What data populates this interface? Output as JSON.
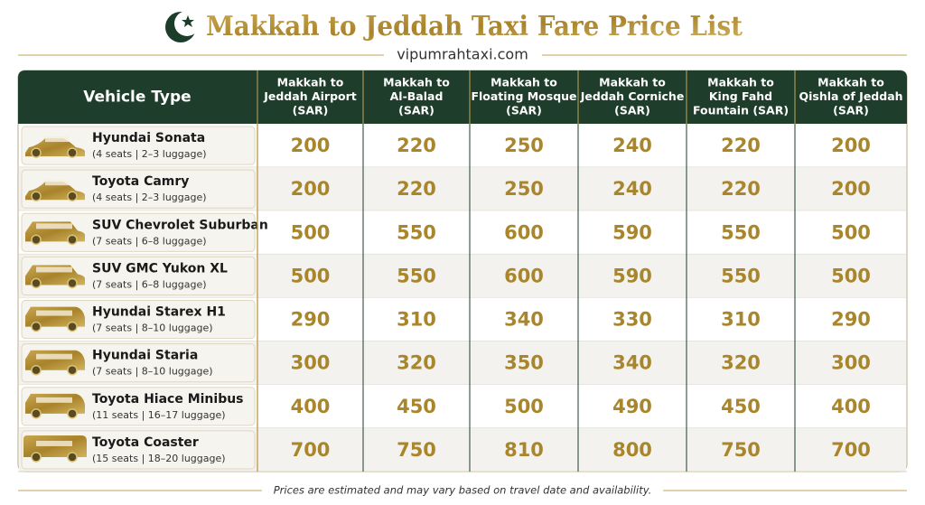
{
  "header": {
    "title": "Makkah to Jeddah Taxi Fare Price List",
    "subtitle": "vipumrahtaxi.com"
  },
  "table": {
    "columns": [
      [
        "Vehicle Type"
      ],
      [
        "Makkah to",
        "Jeddah Airport",
        "(SAR)"
      ],
      [
        "Makkah to",
        "Al-Balad",
        "(SAR)"
      ],
      [
        "Makkah to",
        "Floating Mosque",
        "(SAR)"
      ],
      [
        "Makkah to",
        "Jeddah Corniche",
        "(SAR)"
      ],
      [
        "Makkah to",
        "King Fahd",
        "Fountain (SAR)"
      ],
      [
        "Makkah to",
        "Qishla of Jeddah",
        "(SAR)"
      ]
    ],
    "rows": [
      {
        "name": "Hyundai Sonata",
        "details": "(4 seats | 2–3 luggage)",
        "prices": [
          200,
          220,
          250,
          240,
          220,
          200
        ]
      },
      {
        "name": "Toyota Camry",
        "details": "(4 seats | 2–3 luggage)",
        "prices": [
          200,
          220,
          250,
          240,
          220,
          200
        ]
      },
      {
        "name": "SUV Chevrolet Suburban",
        "details": "(7 seats | 6–8 luggage)",
        "prices": [
          500,
          550,
          600,
          590,
          550,
          500
        ]
      },
      {
        "name": "SUV GMC Yukon XL",
        "details": "(7 seats | 6–8 luggage)",
        "prices": [
          500,
          550,
          600,
          590,
          550,
          500
        ]
      },
      {
        "name": "Hyundai Starex H1",
        "details": "(7 seats | 8–10 luggage)",
        "prices": [
          290,
          310,
          340,
          330,
          310,
          290
        ]
      },
      {
        "name": "Hyundai Staria",
        "details": "(7 seats | 8–10 luggage)",
        "prices": [
          300,
          320,
          350,
          340,
          320,
          300
        ]
      },
      {
        "name": "Toyota Hiace Minibus",
        "details": "(11 seats | 16–17 luggage)",
        "prices": [
          400,
          450,
          500,
          490,
          450,
          400
        ]
      },
      {
        "name": "Toyota Coaster",
        "details": "(15 seats | 18–20 luggage)",
        "prices": [
          700,
          750,
          810,
          800,
          750,
          700
        ]
      }
    ]
  },
  "footer": {
    "note": "Prices are estimated and may vary based on travel date and availability."
  }
}
